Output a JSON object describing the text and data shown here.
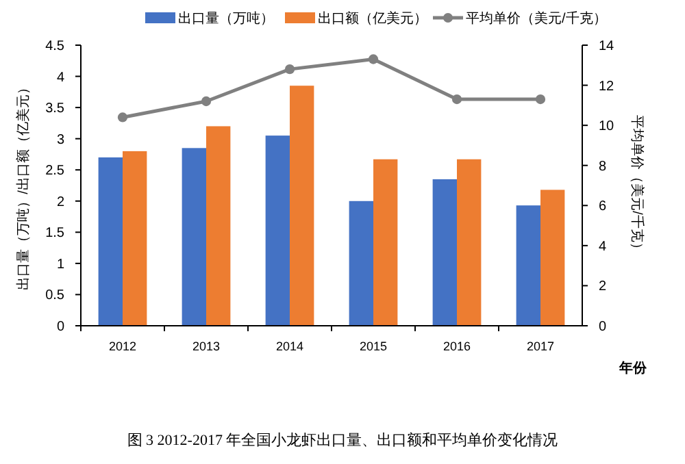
{
  "chart_data": {
    "type": "bar",
    "xlabel": "年份",
    "ylabel": "出口量（万吨）/出口额（亿美元）",
    "y2label": "平均单价（美元/千克）",
    "categories": [
      "2012",
      "2013",
      "2014",
      "2015",
      "2016",
      "2017"
    ],
    "series": [
      {
        "name": "出口量（万吨）",
        "color": "#4472c4",
        "values": [
          2.7,
          2.85,
          3.05,
          2.0,
          2.35,
          1.93
        ]
      },
      {
        "name": "出口额（亿美元）",
        "color": "#ed7d31",
        "values": [
          2.8,
          3.2,
          3.85,
          2.67,
          2.67,
          2.18
        ]
      },
      {
        "name": "平均单价（美元/千克）",
        "type": "line",
        "axis": "y2",
        "color": "#808080",
        "marker": "circle",
        "values": [
          10.4,
          11.2,
          12.8,
          13.3,
          11.3,
          11.3
        ]
      }
    ],
    "ylim": [
      0,
      4.5
    ],
    "yticks": [
      0,
      0.5,
      1,
      1.5,
      2,
      2.5,
      3,
      3.5,
      4,
      4.5
    ],
    "y2lim": [
      0,
      14
    ],
    "y2ticks": [
      0,
      2,
      4,
      6,
      8,
      10,
      12,
      14
    ],
    "grid": false,
    "legend": "top",
    "annotations": [
      "图 3 2012-2017 年全国小龙虾出口量、出口额和平均单价变化情况"
    ]
  }
}
